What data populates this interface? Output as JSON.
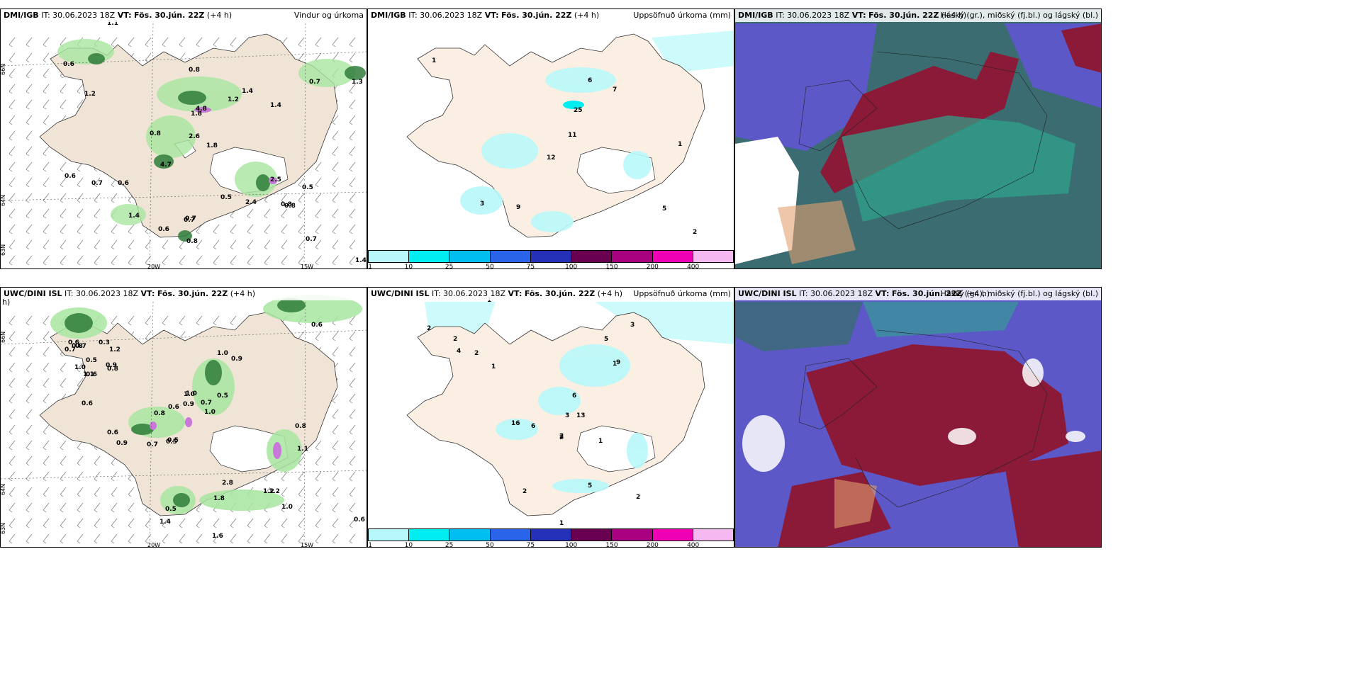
{
  "panels": {
    "p1": {
      "model": "DMI/IGB",
      "it_label": "IT:",
      "it": "30.06.2023 18Z",
      "vt_label": "VT:",
      "vt": "Fös. 30.jún. 22Z",
      "lead": "(+4 h)",
      "title": "Vindur og úrkoma",
      "lat_labels": [
        "66N",
        "64N",
        "63N"
      ],
      "lon_labels": [
        "20W",
        "15W"
      ]
    },
    "p2": {
      "model": "DMI/IGB",
      "it_label": "IT:",
      "it": "30.06.2023 18Z",
      "vt_label": "VT:",
      "vt": "Fös. 30.jún. 22Z",
      "lead": "(+4 h)",
      "title": "Uppsöfnuð úrkoma (mm)"
    },
    "p3": {
      "model": "DMI/IGB",
      "it_label": "IT:",
      "it": "30.06.2023 18Z",
      "vt_label": "VT:",
      "vt": "Fös. 30.jún. 22Z",
      "lead": "(+4 h)",
      "title": "Háský (gr.), miðský (fj.bl.) og lágský (bl.)"
    },
    "p4": {
      "model": "UWC/DINI ISL",
      "it_label": "IT:",
      "it": "30.06.2023 18Z",
      "vt_label": "VT:",
      "vt": "Fös. 30.jún. 22Z",
      "lead": "(+4 h)",
      "title": "h)",
      "lat_labels": [
        "66N",
        "64N",
        "63N"
      ],
      "lon_labels": [
        "20W",
        "15W"
      ]
    },
    "p5": {
      "model": "UWC/DINI ISL",
      "it_label": "IT:",
      "it": "30.06.2023 18Z",
      "vt_label": "VT:",
      "vt": "Fös. 30.jún. 22Z",
      "lead": "(+4 h)",
      "title": "Uppsöfnuð úrkoma (mm)"
    },
    "p6": {
      "model": "UWC/DINI ISL",
      "it_label": "IT:",
      "it": "30.06.2023 18Z",
      "vt_label": "VT:",
      "vt": "Fös. 30.jún. 22Z",
      "lead": "(+4 h)",
      "title": "Háský (gr.), miðský (fj.bl.) og lágský (bl.)"
    }
  },
  "colorbar": {
    "ticks": [
      "1",
      "10",
      "25",
      "50",
      "75",
      "100",
      "150",
      "200",
      "400"
    ],
    "colors": [
      "#b8f8fa",
      "#00eef2",
      "#00bff0",
      "#2a64e8",
      "#2430b8",
      "#6a0050",
      "#a8007e",
      "#f000b4",
      "#f6b8f0"
    ]
  },
  "labels": {
    "p1_precip": [
      "0.6",
      "0.8",
      "1.2",
      "0.8",
      "0.6",
      "1.2",
      "1.4",
      "0.7",
      "0.7",
      "1.3",
      "0.6",
      "2.6",
      "1.8",
      "0.8",
      "4.7",
      "0.7",
      "0.6",
      "0.5",
      "2.4",
      "0.8",
      "0.5",
      "1.4",
      "0.7",
      "0.8",
      "2.5",
      "0.7",
      "1.4",
      "1.8",
      "4.8",
      "1.4",
      "1.1"
    ],
    "p2_accum": [
      "1",
      "6",
      "7",
      "25",
      "11",
      "12",
      "3",
      "9",
      "1",
      "5",
      "2"
    ],
    "p4_precip": [
      "0.7",
      "0.8",
      "0.5",
      "0.6",
      "1.0",
      "0.7",
      "0.9",
      "0.8",
      "0.3",
      "0.6",
      "1.2",
      "1.1",
      "1.0",
      "0.9",
      "1.0",
      "0.6",
      "0.5",
      "0.5",
      "0.6",
      "0.8",
      "0.6",
      "0.9",
      "0.7",
      "0.5",
      "1.0",
      "0.7",
      "0.9",
      "1.0",
      "0.8",
      "1.2",
      "1.1",
      "2.8",
      "1.8",
      "1.2",
      "1.0",
      "0.5",
      "1.4",
      "0.6",
      "1.6",
      "0.6"
    ],
    "p5_accum": [
      "1",
      "2",
      "2",
      "4",
      "2",
      "1",
      "5",
      "3",
      "1",
      "9",
      "6",
      "13",
      "16",
      "6",
      "3",
      "2",
      "2",
      "1",
      "5",
      "2",
      "2",
      "1"
    ]
  },
  "legend_left": [
    "1",
    "10",
    "25",
    "50",
    "75",
    "100",
    "150",
    "200",
    "400"
  ]
}
